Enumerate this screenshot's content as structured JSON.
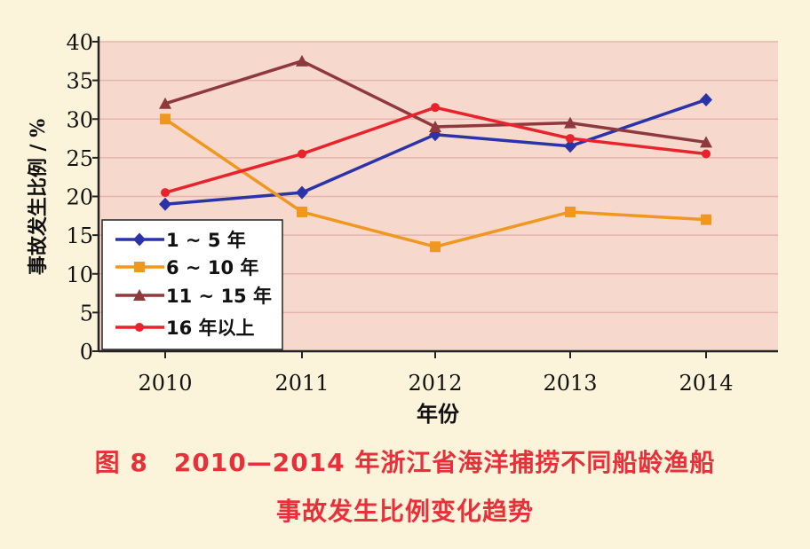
{
  "chart_data": {
    "type": "line",
    "title": "",
    "xlabel": "年份",
    "ylabel": "事故发生比例 / %",
    "x": [
      "2010",
      "2011",
      "2012",
      "2013",
      "2014"
    ],
    "ylim": [
      0,
      40
    ],
    "yticks": [
      "0",
      "5",
      "10",
      "15",
      "20",
      "25",
      "30",
      "35",
      "40"
    ],
    "grid": true,
    "legend_position": "bottom-left",
    "series": [
      {
        "name": "1 ~ 5 年",
        "marker": "diamond",
        "color": "#2a34a8",
        "values": [
          19.0,
          20.5,
          28.0,
          26.5,
          32.5
        ]
      },
      {
        "name": "6 ~ 10 年",
        "marker": "square",
        "color": "#f0971f",
        "values": [
          30.0,
          18.0,
          13.5,
          18.0,
          17.0
        ]
      },
      {
        "name": "11 ~ 15 年",
        "marker": "triangle",
        "color": "#8e3a3c",
        "values": [
          32.0,
          37.5,
          29.0,
          29.5,
          27.0
        ]
      },
      {
        "name": "16 年以上",
        "marker": "circle",
        "color": "#e8232b",
        "values": [
          20.5,
          25.5,
          31.5,
          27.5,
          25.5
        ]
      }
    ]
  },
  "caption": {
    "line1": "图 8　2010—2014 年浙江省海洋捕捞不同船龄渔船",
    "line2": "事故发生比例变化趋势"
  }
}
